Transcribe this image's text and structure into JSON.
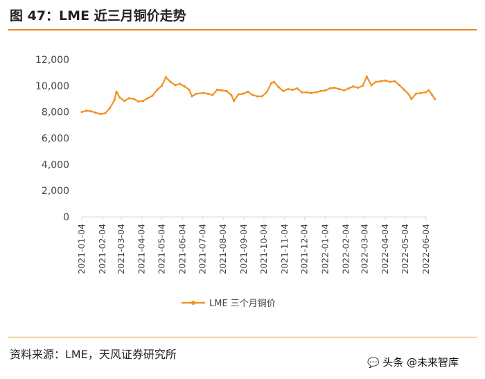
{
  "header": {
    "title": "图 47：LME 近三月铜价走势"
  },
  "footer": {
    "source": "资料来源：LME，天风证券研究所"
  },
  "watermark": {
    "text": "头条 @未来智库",
    "icon": "wechat-bubble-icon"
  },
  "colors": {
    "accent": "#e8861a",
    "series": "#f29122",
    "axis": "#d9d9d9"
  },
  "chart_data": {
    "type": "line",
    "title": "",
    "xlabel": "",
    "ylabel": "",
    "ylim": [
      0,
      12000
    ],
    "yticks": [
      0,
      2000,
      4000,
      6000,
      8000,
      10000,
      12000
    ],
    "ytick_labels": [
      "0",
      "2,000",
      "4,000",
      "6,000",
      "8,000",
      "10,000",
      "12,000"
    ],
    "xticks": [
      "2021-01-04",
      "2021-02-04",
      "2021-03-04",
      "2021-04-04",
      "2021-05-04",
      "2021-06-04",
      "2021-07-04",
      "2021-08-04",
      "2021-09-04",
      "2021-10-04",
      "2021-11-04",
      "2021-12-04",
      "2022-01-04",
      "2022-02-04",
      "2022-03-04",
      "2022-04-04",
      "2022-05-04",
      "2022-06-04"
    ],
    "legend": {
      "placement": "bottom"
    },
    "grid": false,
    "series": [
      {
        "name": "LME 三个月铜价",
        "points": [
          [
            "2021-01-04",
            8000
          ],
          [
            "2021-01-11",
            8100
          ],
          [
            "2021-01-18",
            8050
          ],
          [
            "2021-01-25",
            7950
          ],
          [
            "2021-02-01",
            7850
          ],
          [
            "2021-02-08",
            7900
          ],
          [
            "2021-02-15",
            8300
          ],
          [
            "2021-02-22",
            8900
          ],
          [
            "2021-02-25",
            9550
          ],
          [
            "2021-03-02",
            9100
          ],
          [
            "2021-03-09",
            8850
          ],
          [
            "2021-03-16",
            9050
          ],
          [
            "2021-03-23",
            9000
          ],
          [
            "2021-03-30",
            8800
          ],
          [
            "2021-04-06",
            8850
          ],
          [
            "2021-04-13",
            9050
          ],
          [
            "2021-04-20",
            9250
          ],
          [
            "2021-04-27",
            9700
          ],
          [
            "2021-05-04",
            10000
          ],
          [
            "2021-05-10",
            10650
          ],
          [
            "2021-05-17",
            10300
          ],
          [
            "2021-05-24",
            10050
          ],
          [
            "2021-05-31",
            10150
          ],
          [
            "2021-06-07",
            9950
          ],
          [
            "2021-06-14",
            9700
          ],
          [
            "2021-06-18",
            9200
          ],
          [
            "2021-06-25",
            9400
          ],
          [
            "2021-07-05",
            9450
          ],
          [
            "2021-07-12",
            9400
          ],
          [
            "2021-07-19",
            9300
          ],
          [
            "2021-07-26",
            9700
          ],
          [
            "2021-08-02",
            9650
          ],
          [
            "2021-08-09",
            9600
          ],
          [
            "2021-08-16",
            9300
          ],
          [
            "2021-08-20",
            8850
          ],
          [
            "2021-08-27",
            9350
          ],
          [
            "2021-09-03",
            9400
          ],
          [
            "2021-09-10",
            9550
          ],
          [
            "2021-09-17",
            9300
          ],
          [
            "2021-09-24",
            9200
          ],
          [
            "2021-10-01",
            9200
          ],
          [
            "2021-10-08",
            9500
          ],
          [
            "2021-10-15",
            10200
          ],
          [
            "2021-10-19",
            10300
          ],
          [
            "2021-10-26",
            9900
          ],
          [
            "2021-11-02",
            9600
          ],
          [
            "2021-11-09",
            9750
          ],
          [
            "2021-11-16",
            9700
          ],
          [
            "2021-11-23",
            9800
          ],
          [
            "2021-11-30",
            9500
          ],
          [
            "2021-12-07",
            9500
          ],
          [
            "2021-12-14",
            9450
          ],
          [
            "2021-12-21",
            9500
          ],
          [
            "2021-12-28",
            9600
          ],
          [
            "2022-01-04",
            9650
          ],
          [
            "2022-01-11",
            9800
          ],
          [
            "2022-01-18",
            9850
          ],
          [
            "2022-01-25",
            9750
          ],
          [
            "2022-02-01",
            9650
          ],
          [
            "2022-02-08",
            9800
          ],
          [
            "2022-02-15",
            9950
          ],
          [
            "2022-02-22",
            9850
          ],
          [
            "2022-03-01",
            10000
          ],
          [
            "2022-03-07",
            10700
          ],
          [
            "2022-03-14",
            10050
          ],
          [
            "2022-03-21",
            10300
          ],
          [
            "2022-03-28",
            10350
          ],
          [
            "2022-04-04",
            10400
          ],
          [
            "2022-04-11",
            10300
          ],
          [
            "2022-04-18",
            10350
          ],
          [
            "2022-04-25",
            10050
          ],
          [
            "2022-05-02",
            9700
          ],
          [
            "2022-05-09",
            9350
          ],
          [
            "2022-05-13",
            9000
          ],
          [
            "2022-05-20",
            9400
          ],
          [
            "2022-05-27",
            9450
          ],
          [
            "2022-06-03",
            9500
          ],
          [
            "2022-06-08",
            9650
          ],
          [
            "2022-06-13",
            9300
          ],
          [
            "2022-06-17",
            9000
          ]
        ]
      }
    ]
  }
}
